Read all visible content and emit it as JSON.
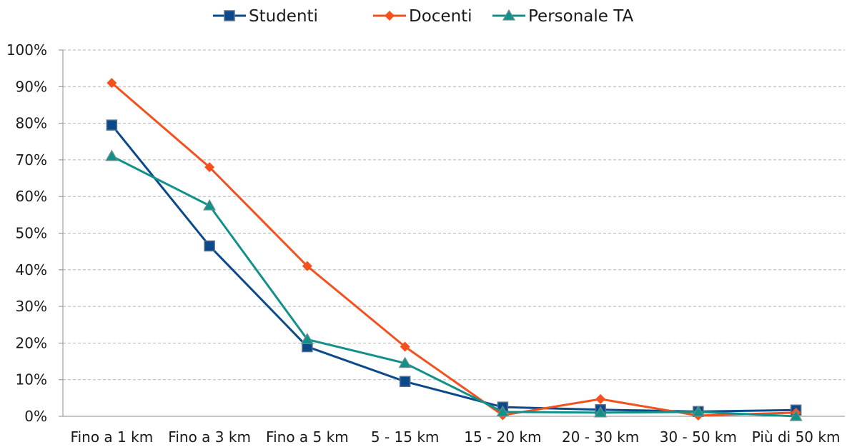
{
  "chart_data": {
    "type": "line",
    "title": "",
    "xlabel": "",
    "ylabel": "",
    "categories": [
      "Fino a 1 km",
      "Fino a 3 km",
      "Fino a 5 km",
      "5 - 15 km",
      "15 - 20 km",
      "20 - 30 km",
      "30 - 50 km",
      "Più di 50 km"
    ],
    "ylim": [
      0,
      100
    ],
    "yticks": [
      "0%",
      "10%",
      "20%",
      "30%",
      "40%",
      "50%",
      "60%",
      "70%",
      "80%",
      "90%",
      "100%"
    ],
    "grid": true,
    "legend_position": "top",
    "series": [
      {
        "name": "Studenti",
        "color": "#0b4a8a",
        "marker": "square",
        "values": [
          79.5,
          46.5,
          19,
          9.5,
          2.5,
          1.8,
          1.3,
          1.7
        ]
      },
      {
        "name": "Docenti",
        "color": "#f4511e",
        "marker": "diamond",
        "values": [
          91,
          68,
          41,
          19,
          0.3,
          4.7,
          0.2,
          1.0
        ]
      },
      {
        "name": "Personale TA",
        "color": "#12918a",
        "marker": "triangle",
        "values": [
          71,
          57.5,
          21,
          14.5,
          1.2,
          1.0,
          1.2,
          0
        ]
      }
    ]
  }
}
